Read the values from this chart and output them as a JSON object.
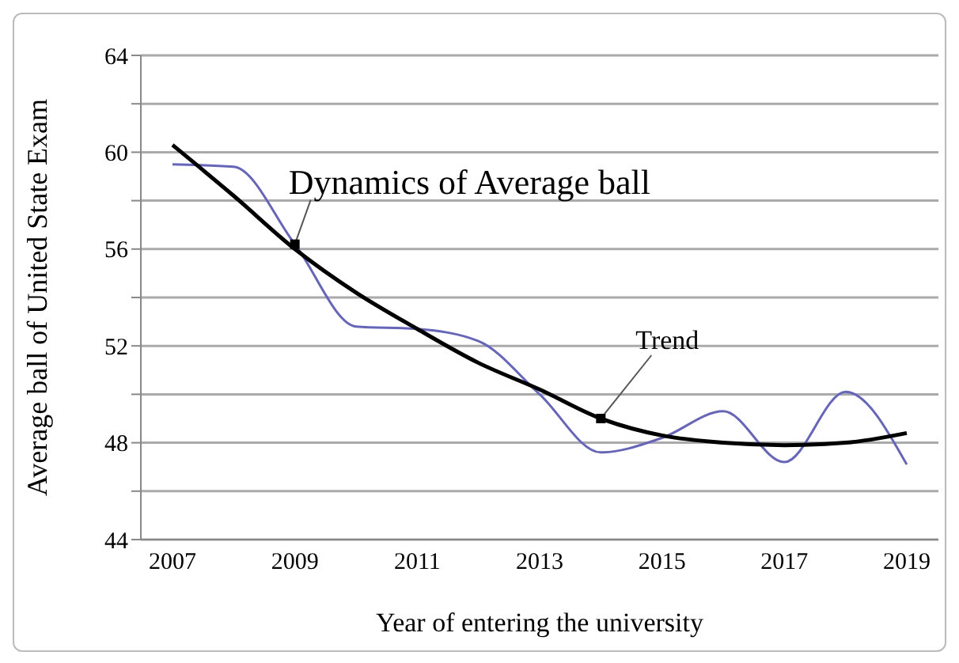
{
  "chart_data": {
    "type": "line",
    "xlabel": "Year of entering the university",
    "ylabel": "Average ball  of United State Exam",
    "categories": [
      "2007",
      null,
      "2009",
      null,
      "2011",
      null,
      "2013",
      null,
      "2015",
      null,
      "2017",
      null,
      "2019"
    ],
    "series": [
      {
        "name": "Dynamics of Average ball",
        "color": "#6464c8",
        "values": [
          59.5,
          59.4,
          56.2,
          52.8,
          52.7,
          52.2,
          50.0,
          47.6,
          48.2,
          49.3,
          47.2,
          50.1,
          47.1
        ]
      },
      {
        "name": "Trend",
        "color": "#000000",
        "values": [
          60.3,
          58.2,
          56.0,
          54.2,
          52.7,
          51.3,
          50.2,
          49.0,
          48.3,
          48.0,
          47.9,
          48.0,
          48.4
        ]
      }
    ],
    "ylim": [
      44,
      64
    ],
    "yticks": [
      44,
      {
        "value": 46,
        "label": null
      },
      48,
      {
        "value": 50,
        "label": null
      },
      52,
      {
        "value": 54,
        "label": null
      },
      56,
      {
        "value": 58,
        "label": null
      },
      60,
      {
        "value": 62,
        "label": null
      },
      64
    ],
    "grid": "y",
    "legend": false,
    "marker": "none",
    "line_style": "solid"
  }
}
